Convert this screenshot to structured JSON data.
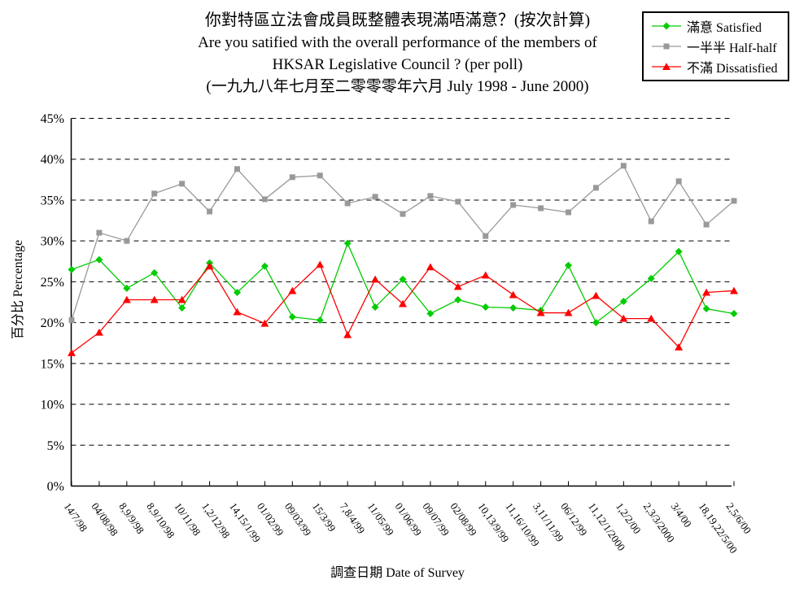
{
  "title": {
    "line1": "你對特區立法會成員既整體表現滿唔滿意？(按次計算)",
    "line2": "Are you satified with the overall performance of the members of",
    "line3": "HKSAR Legislative Council ?  (per poll)",
    "line4": "(一九九八年七月至二零零零年六月 July 1998 - June 2000)"
  },
  "chart_data": {
    "type": "line",
    "title": "你對特區立法會成員既整體表現滿唔滿意？(按次計算) Are you satified with the overall performance of the members of HKSAR Legislative Council ? (per poll) (一九九八年七月至二零零零年六月 July 1998 - June 2000)",
    "xlabel": "調查日期 Date of Survey",
    "ylabel": "百分比 Percentage",
    "ylim": [
      0,
      45
    ],
    "y_tick_step": 5,
    "y_ticks": [
      "0%",
      "5%",
      "10%",
      "15%",
      "20%",
      "25%",
      "30%",
      "35%",
      "40%",
      "45%"
    ],
    "grid": "horizontal-dashed-black",
    "legend_position": "top-right",
    "categories": [
      "14/7/98",
      "04/08/98",
      "8,9/9/98",
      "8,9/10/98",
      "10/11/98",
      "1,2/12/98",
      "14,15/1/99",
      "01/02/99",
      "09/03/99",
      "15/3/99",
      "7,8/4/99",
      "11/05/99",
      "01/06/99",
      "09/07/99",
      "02/08/99",
      "10,13/9/99",
      "11,16/10/99",
      "3,11/11/99",
      "06/12/99",
      "11,12/1/2000",
      "1,2/2/00",
      "2,3/3/2000",
      "3/4/00",
      "18,19,22/5/00",
      "2,5/6/00"
    ],
    "series": [
      {
        "id": "satisfied",
        "name": "滿意 Satisfied",
        "marker": "diamond",
        "color": "#00CC00",
        "values": [
          26.5,
          27.7,
          24.2,
          26.1,
          21.8,
          27.3,
          23.7,
          26.9,
          20.7,
          20.3,
          29.7,
          21.9,
          25.3,
          21.1,
          22.8,
          21.9,
          21.8,
          21.5,
          27.0,
          20.0,
          22.6,
          25.4,
          28.7,
          21.7,
          21.1
        ]
      },
      {
        "id": "half-half",
        "name": "一半半 Half-half",
        "marker": "square",
        "color": "#999999",
        "values": [
          20.3,
          31.0,
          30.0,
          35.8,
          37.0,
          33.6,
          38.8,
          35.1,
          37.8,
          38.0,
          34.6,
          35.4,
          33.3,
          35.5,
          34.8,
          30.6,
          34.4,
          34.0,
          33.5,
          36.5,
          39.2,
          32.4,
          37.3,
          32.0,
          34.9
        ]
      },
      {
        "id": "dissatisfied",
        "name": "不滿 Dissatisfied",
        "marker": "triangle",
        "color": "#FF0000",
        "values": [
          16.3,
          18.8,
          22.8,
          22.8,
          22.8,
          26.9,
          21.3,
          19.9,
          23.9,
          27.1,
          18.5,
          25.3,
          22.3,
          26.8,
          24.4,
          25.8,
          23.4,
          21.2,
          21.2,
          23.3,
          20.5,
          20.5,
          17.0,
          23.7,
          23.9
        ]
      }
    ]
  }
}
